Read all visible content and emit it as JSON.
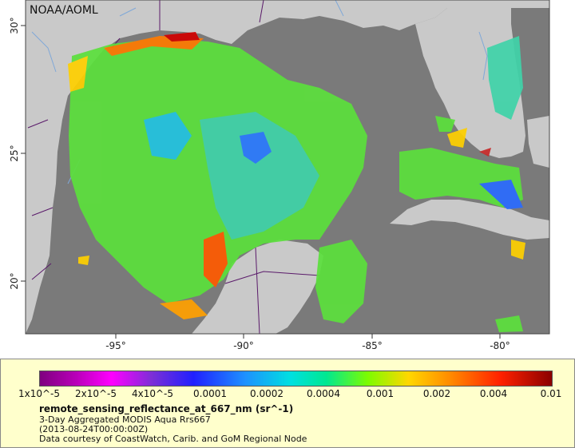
{
  "credit": "NOAA/AOML",
  "map": {
    "lon_ticks": [
      "-95°",
      "-90°",
      "-85°",
      "-80°"
    ],
    "lat_ticks": [
      "30°",
      "25°",
      "20°"
    ],
    "colors": {
      "ocean": "#7a7a7a",
      "land": "#c9c9c9",
      "border": "#5a1a6a",
      "river": "#7fa8d8"
    }
  },
  "legend": {
    "colorbar_labels": [
      "1x10^-5",
      "2x10^-5",
      "4x10^-5",
      "0.0001",
      "0.0002",
      "0.0004",
      "0.001",
      "0.002",
      "0.004",
      "0.01"
    ],
    "variable": "remote_sensing_reflectance_at_667_nm (sr^-1)",
    "line1": "3-Day Aggregated MODIS Aqua Rrs667",
    "line2": "(2013-08-24T00:00:00Z)",
    "line3": "Data courtesy of CoastWatch, Carib. and GoM Regional Node",
    "panel_color": "#ffffcc"
  }
}
